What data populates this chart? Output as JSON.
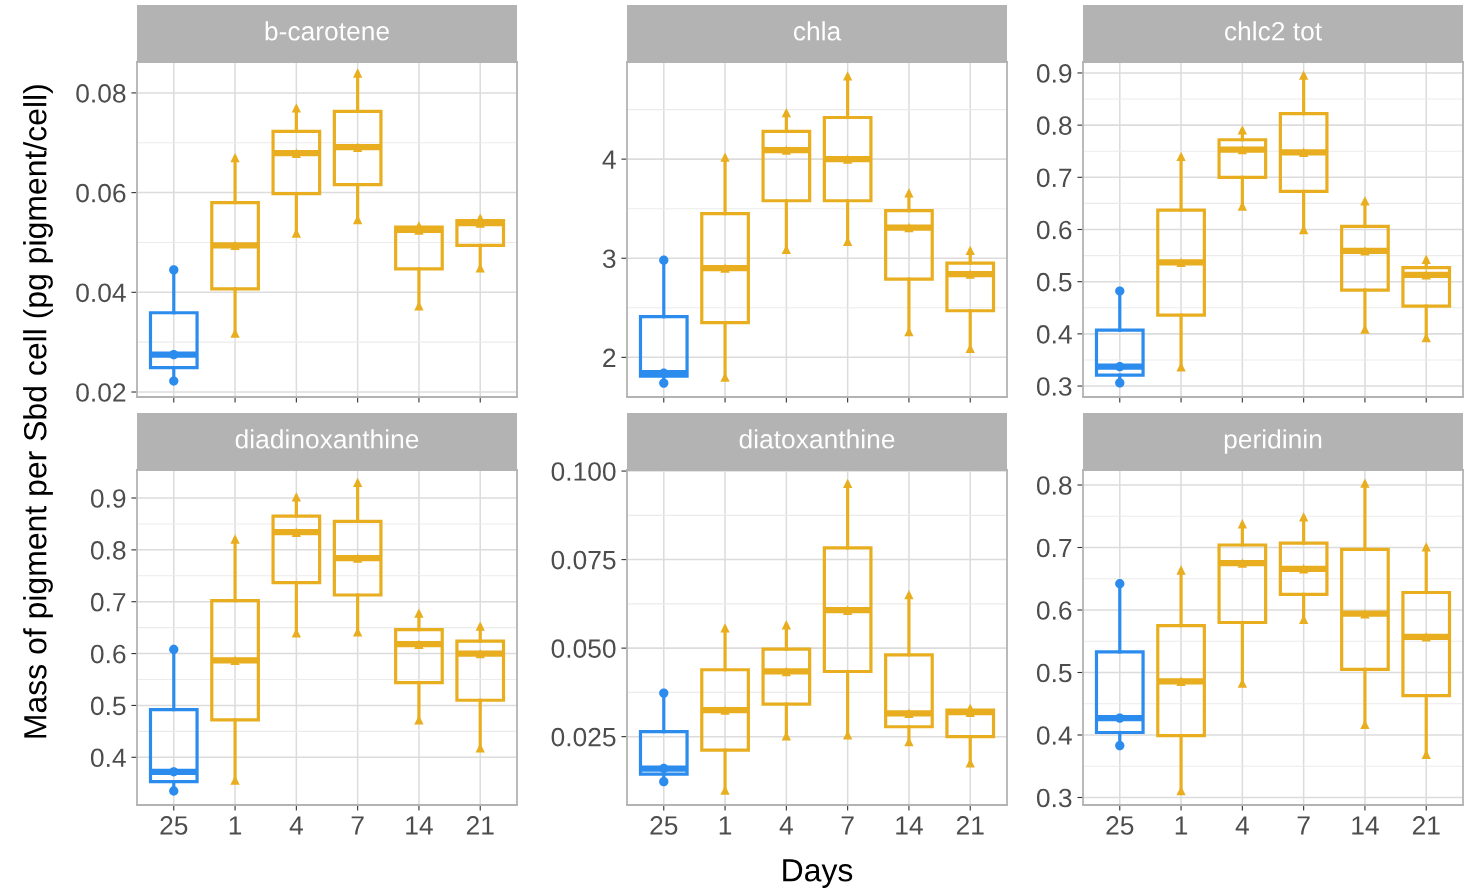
{
  "chart_data": [
    {
      "type": "box",
      "title": "b-carotene",
      "ylabel": "Mass of pigment per Sbd cell (pg pigment/cell)",
      "categories": [
        "25",
        "1",
        "4",
        "7",
        "14",
        "21"
      ],
      "colors": [
        "#2b8cee",
        "#e8ae1f",
        "#e8ae1f",
        "#e8ae1f",
        "#e8ae1f",
        "#e8ae1f"
      ],
      "boxes": [
        {
          "low": 0.0222,
          "q1": 0.0249,
          "median": 0.0275,
          "q3": 0.0359,
          "high": 0.0445
        },
        {
          "low": 0.0318,
          "q1": 0.0407,
          "median": 0.0494,
          "q3": 0.058,
          "high": 0.067
        },
        {
          "low": 0.0519,
          "q1": 0.0598,
          "median": 0.0679,
          "q3": 0.0723,
          "high": 0.077
        },
        {
          "low": 0.0546,
          "q1": 0.0616,
          "median": 0.0691,
          "q3": 0.0763,
          "high": 0.084
        },
        {
          "low": 0.0373,
          "q1": 0.0447,
          "median": 0.0525,
          "q3": 0.0531,
          "high": 0.0533
        },
        {
          "low": 0.0449,
          "q1": 0.0494,
          "median": 0.0539,
          "q3": 0.0544,
          "high": 0.0549
        }
      ],
      "series": [
        {
          "type": "scatter",
          "marker": "circle",
          "color": "#2b8cee",
          "x": [
            "25",
            "25",
            "25"
          ],
          "values": [
            0.0222,
            0.0275,
            0.0445
          ]
        },
        {
          "type": "scatter",
          "marker": "triangle",
          "color": "#e8ae1f",
          "x": [
            "1",
            "1",
            "1",
            "4",
            "4",
            "4",
            "7",
            "7",
            "7",
            "14",
            "14",
            "14",
            "21",
            "21",
            "21"
          ],
          "values": [
            0.0318,
            0.0494,
            0.067,
            0.0519,
            0.0679,
            0.077,
            0.0546,
            0.0691,
            0.084,
            0.0373,
            0.0525,
            0.0533,
            0.0449,
            0.0539,
            0.0549
          ]
        }
      ],
      "ylim": [
        0.019,
        0.0862
      ],
      "yticks": [
        {
          "value": 0.02,
          "label": "0.02"
        },
        {
          "value": 0.04,
          "label": "0.04"
        },
        {
          "value": 0.06,
          "label": "0.06"
        },
        {
          "value": 0.08,
          "label": "0.08"
        }
      ],
      "grid": true,
      "tick_labels": "y"
    },
    {
      "type": "box",
      "title": "chla",
      "categories": [
        "25",
        "1",
        "4",
        "7",
        "14",
        "21"
      ],
      "colors": [
        "#2b8cee",
        "#e8ae1f",
        "#e8ae1f",
        "#e8ae1f",
        "#e8ae1f",
        "#e8ae1f"
      ],
      "boxes": [
        {
          "low": 1.74,
          "q1": 1.81,
          "median": 1.84,
          "q3": 2.41,
          "high": 2.98
        },
        {
          "low": 1.8,
          "q1": 2.35,
          "median": 2.9,
          "q3": 3.45,
          "high": 4.02
        },
        {
          "low": 3.09,
          "q1": 3.58,
          "median": 4.09,
          "q3": 4.28,
          "high": 4.47
        },
        {
          "low": 3.17,
          "q1": 3.58,
          "median": 4.0,
          "q3": 4.42,
          "high": 4.84
        },
        {
          "low": 2.26,
          "q1": 2.79,
          "median": 3.31,
          "q3": 3.48,
          "high": 3.66
        },
        {
          "low": 2.09,
          "q1": 2.47,
          "median": 2.84,
          "q3": 2.95,
          "high": 3.08
        }
      ],
      "series": [
        {
          "type": "scatter",
          "marker": "circle",
          "color": "#2b8cee",
          "x": [
            "25",
            "25",
            "25"
          ],
          "values": [
            1.74,
            1.84,
            2.98
          ]
        },
        {
          "type": "scatter",
          "marker": "triangle",
          "color": "#e8ae1f",
          "x": [
            "1",
            "1",
            "1",
            "4",
            "4",
            "4",
            "7",
            "7",
            "7",
            "14",
            "14",
            "14",
            "21",
            "21",
            "21"
          ],
          "values": [
            1.8,
            2.9,
            4.02,
            3.09,
            4.09,
            4.47,
            3.17,
            4.0,
            4.84,
            2.26,
            3.31,
            3.66,
            2.09,
            2.84,
            3.08
          ]
        }
      ],
      "ylim": [
        1.6,
        4.98
      ],
      "yticks": [
        2,
        {
          "value": 2.5,
          "label": null
        },
        3,
        {
          "value": 3.5,
          "label": null
        },
        4,
        {
          "value": 4.5,
          "label": null
        }
      ],
      "grid": true,
      "tick_labels": "y"
    },
    {
      "type": "box",
      "title": "chlc2 tot",
      "categories": [
        "25",
        "1",
        "4",
        "7",
        "14",
        "21"
      ],
      "colors": [
        "#2b8cee",
        "#e8ae1f",
        "#e8ae1f",
        "#e8ae1f",
        "#e8ae1f",
        "#e8ae1f"
      ],
      "boxes": [
        {
          "low": 0.306,
          "q1": 0.321,
          "median": 0.337,
          "q3": 0.407,
          "high": 0.482
        },
        {
          "low": 0.337,
          "q1": 0.436,
          "median": 0.537,
          "q3": 0.637,
          "high": 0.74
        },
        {
          "low": 0.645,
          "q1": 0.7,
          "median": 0.753,
          "q3": 0.772,
          "high": 0.791
        },
        {
          "low": 0.6,
          "q1": 0.673,
          "median": 0.748,
          "q3": 0.822,
          "high": 0.896
        },
        {
          "low": 0.409,
          "q1": 0.484,
          "median": 0.559,
          "q3": 0.606,
          "high": 0.655
        },
        {
          "low": 0.393,
          "q1": 0.453,
          "median": 0.513,
          "q3": 0.527,
          "high": 0.543
        }
      ],
      "series": [
        {
          "type": "scatter",
          "marker": "circle",
          "color": "#2b8cee",
          "x": [
            "25",
            "25",
            "25"
          ],
          "values": [
            0.306,
            0.337,
            0.482
          ]
        },
        {
          "type": "scatter",
          "marker": "triangle",
          "color": "#e8ae1f",
          "x": [
            "1",
            "1",
            "1",
            "4",
            "4",
            "4",
            "7",
            "7",
            "7",
            "14",
            "14",
            "14",
            "21",
            "21",
            "21"
          ],
          "values": [
            0.337,
            0.537,
            0.74,
            0.645,
            0.753,
            0.791,
            0.6,
            0.748,
            0.896,
            0.409,
            0.559,
            0.655,
            0.393,
            0.513,
            0.543
          ]
        }
      ],
      "ylim": [
        0.279,
        0.921
      ],
      "yticks": [
        0.3,
        0.4,
        0.5,
        0.6,
        0.7,
        0.8,
        0.9
      ],
      "grid": true,
      "tick_labels": "y"
    },
    {
      "type": "box",
      "title": "diadinoxanthine",
      "categories": [
        "25",
        "1",
        "4",
        "7",
        "14",
        "21"
      ],
      "colors": [
        "#2b8cee",
        "#e8ae1f",
        "#e8ae1f",
        "#e8ae1f",
        "#e8ae1f",
        "#e8ae1f"
      ],
      "boxes": [
        {
          "low": 0.335,
          "q1": 0.353,
          "median": 0.372,
          "q3": 0.492,
          "high": 0.608
        },
        {
          "low": 0.356,
          "q1": 0.472,
          "median": 0.587,
          "q3": 0.702,
          "high": 0.821
        },
        {
          "low": 0.64,
          "q1": 0.737,
          "median": 0.834,
          "q3": 0.865,
          "high": 0.902
        },
        {
          "low": 0.642,
          "q1": 0.713,
          "median": 0.784,
          "q3": 0.855,
          "high": 0.93
        },
        {
          "low": 0.472,
          "q1": 0.544,
          "median": 0.618,
          "q3": 0.646,
          "high": 0.678
        },
        {
          "low": 0.418,
          "q1": 0.51,
          "median": 0.6,
          "q3": 0.624,
          "high": 0.653
        }
      ],
      "series": [
        {
          "type": "scatter",
          "marker": "circle",
          "color": "#2b8cee",
          "x": [
            "25",
            "25",
            "25"
          ],
          "values": [
            0.335,
            0.372,
            0.608
          ]
        },
        {
          "type": "scatter",
          "marker": "triangle",
          "color": "#e8ae1f",
          "x": [
            "1",
            "1",
            "1",
            "4",
            "4",
            "4",
            "7",
            "7",
            "7",
            "14",
            "14",
            "14",
            "21",
            "21",
            "21"
          ],
          "values": [
            0.356,
            0.587,
            0.821,
            0.64,
            0.834,
            0.902,
            0.642,
            0.784,
            0.93,
            0.472,
            0.618,
            0.678,
            0.418,
            0.6,
            0.653
          ]
        }
      ],
      "ylim": [
        0.308,
        0.954
      ],
      "yticks": [
        0.4,
        0.5,
        0.6,
        0.7,
        0.8,
        0.9
      ],
      "grid": true
    },
    {
      "type": "box",
      "title": "diatoxanthine",
      "xlabel": "Days",
      "categories": [
        "25",
        "1",
        "4",
        "7",
        "14",
        "21"
      ],
      "colors": [
        "#2b8cee",
        "#e8ae1f",
        "#e8ae1f",
        "#e8ae1f",
        "#e8ae1f",
        "#e8ae1f"
      ],
      "boxes": [
        {
          "low": 0.0123,
          "q1": 0.0144,
          "median": 0.016,
          "q3": 0.0264,
          "high": 0.0373
        },
        {
          "low": 0.0099,
          "q1": 0.0212,
          "median": 0.0325,
          "q3": 0.0439,
          "high": 0.0557
        },
        {
          "low": 0.0252,
          "q1": 0.0342,
          "median": 0.0434,
          "q3": 0.0497,
          "high": 0.0566
        },
        {
          "low": 0.0255,
          "q1": 0.0434,
          "median": 0.0607,
          "q3": 0.0783,
          "high": 0.0965
        },
        {
          "low": 0.0236,
          "q1": 0.0278,
          "median": 0.0316,
          "q3": 0.0481,
          "high": 0.0651
        },
        {
          "low": 0.0176,
          "q1": 0.025,
          "median": 0.0319,
          "q3": 0.0325,
          "high": 0.033
        }
      ],
      "series": [
        {
          "type": "scatter",
          "marker": "circle",
          "color": "#2b8cee",
          "x": [
            "25",
            "25",
            "25"
          ],
          "values": [
            0.0123,
            0.016,
            0.0373
          ]
        },
        {
          "type": "scatter",
          "marker": "triangle",
          "color": "#e8ae1f",
          "x": [
            "1",
            "1",
            "1",
            "4",
            "4",
            "4",
            "7",
            "7",
            "7",
            "14",
            "14",
            "14",
            "21",
            "21",
            "21"
          ],
          "values": [
            0.0099,
            0.0325,
            0.0557,
            0.0252,
            0.0434,
            0.0566,
            0.0255,
            0.0607,
            0.0965,
            0.0236,
            0.0316,
            0.0651,
            0.0176,
            0.0319,
            0.033
          ]
        }
      ],
      "ylim": [
        0.0057,
        0.1003
      ],
      "yticks": [
        {
          "value": 0.025,
          "label": "0.025"
        },
        {
          "value": 0.05,
          "label": "0.050"
        },
        {
          "value": 0.075,
          "label": "0.075"
        },
        {
          "value": 0.1,
          "label": "0.100"
        }
      ],
      "grid": true
    },
    {
      "type": "box",
      "title": "peridinin",
      "categories": [
        "25",
        "1",
        "4",
        "7",
        "14",
        "21"
      ],
      "colors": [
        "#2b8cee",
        "#e8ae1f",
        "#e8ae1f",
        "#e8ae1f",
        "#e8ae1f",
        "#e8ae1f"
      ],
      "boxes": [
        {
          "low": 0.383,
          "q1": 0.404,
          "median": 0.427,
          "q3": 0.533,
          "high": 0.642
        },
        {
          "low": 0.311,
          "q1": 0.399,
          "median": 0.486,
          "q3": 0.575,
          "high": 0.664
        },
        {
          "low": 0.483,
          "q1": 0.58,
          "median": 0.675,
          "q3": 0.704,
          "high": 0.738
        },
        {
          "low": 0.585,
          "q1": 0.625,
          "median": 0.666,
          "q3": 0.707,
          "high": 0.749
        },
        {
          "low": 0.417,
          "q1": 0.505,
          "median": 0.594,
          "q3": 0.697,
          "high": 0.803
        },
        {
          "low": 0.369,
          "q1": 0.463,
          "median": 0.557,
          "q3": 0.628,
          "high": 0.701
        }
      ],
      "series": [
        {
          "type": "scatter",
          "marker": "circle",
          "color": "#2b8cee",
          "x": [
            "25",
            "25",
            "25"
          ],
          "values": [
            0.383,
            0.427,
            0.642
          ]
        },
        {
          "type": "scatter",
          "marker": "triangle",
          "color": "#e8ae1f",
          "x": [
            "1",
            "1",
            "1",
            "4",
            "4",
            "4",
            "7",
            "7",
            "7",
            "14",
            "14",
            "14",
            "21",
            "21",
            "21"
          ],
          "values": [
            0.311,
            0.486,
            0.664,
            0.483,
            0.675,
            0.738,
            0.585,
            0.666,
            0.749,
            0.417,
            0.594,
            0.803,
            0.369,
            0.557,
            0.701
          ]
        }
      ],
      "ylim": [
        0.288,
        0.824
      ],
      "yticks": [
        0.3,
        0.4,
        0.5,
        0.6,
        0.7,
        0.8
      ],
      "grid": true
    }
  ]
}
